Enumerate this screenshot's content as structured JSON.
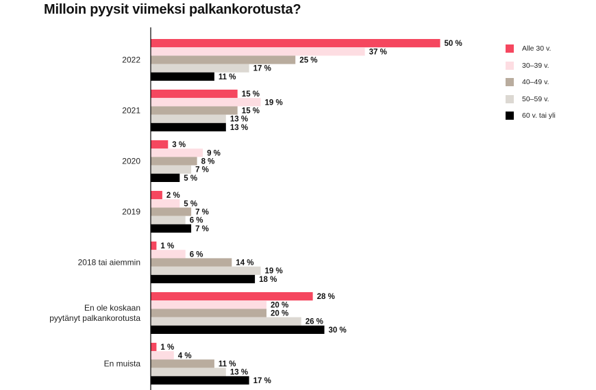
{
  "chart_data": {
    "type": "bar",
    "orientation": "horizontal",
    "title": "Milloin pyysit viimeksi palkankorotusta?",
    "categories": [
      "2022",
      "2021",
      "2020",
      "2019",
      "2018 tai aiemmin",
      "En ole koskaan pyytänyt palkankorotusta",
      "En muista"
    ],
    "category_lines": [
      [
        "2022"
      ],
      [
        "2021"
      ],
      [
        "2020"
      ],
      [
        "2019"
      ],
      [
        "2018 tai aiemmin"
      ],
      [
        "En ole koskaan",
        "pyytänyt palkankorotusta"
      ],
      [
        "En muista"
      ]
    ],
    "series": [
      {
        "name": "Alle 30 v.",
        "color": "#f5475f",
        "values": [
          50,
          15,
          3,
          2,
          1,
          28,
          1
        ]
      },
      {
        "name": "30–39 v.",
        "color": "#fddde2",
        "values": [
          37,
          19,
          9,
          5,
          6,
          20,
          4
        ]
      },
      {
        "name": "40–49 v.",
        "color": "#b9ac9e",
        "values": [
          25,
          15,
          8,
          7,
          14,
          20,
          11
        ]
      },
      {
        "name": "50–59 v.",
        "color": "#dcd8d2",
        "values": [
          17,
          13,
          7,
          6,
          19,
          26,
          13
        ]
      },
      {
        "name": "60 v. tai yli",
        "color": "#000000",
        "values": [
          11,
          13,
          5,
          7,
          18,
          30,
          17
        ]
      }
    ],
    "value_suffix": " %",
    "xlim": [
      0,
      50
    ],
    "legend_position": "right",
    "grid": false
  }
}
